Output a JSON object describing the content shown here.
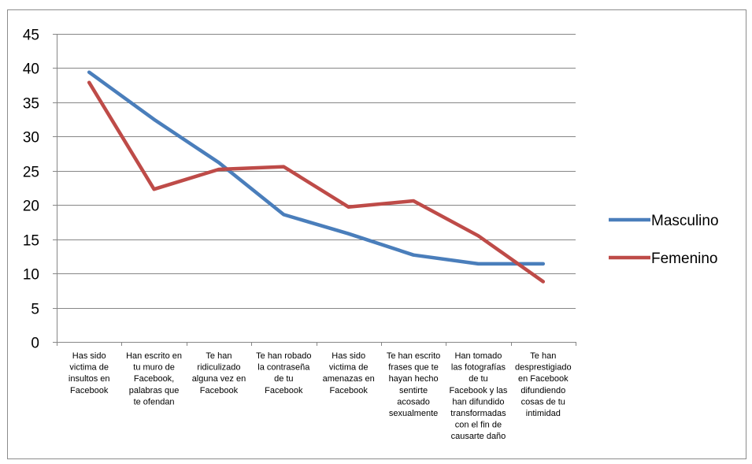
{
  "chart_data": {
    "type": "line",
    "title": "",
    "xlabel": "",
    "ylabel": "",
    "ylim": [
      0,
      45
    ],
    "yticks": [
      0,
      5,
      10,
      15,
      20,
      25,
      30,
      35,
      40,
      45
    ],
    "grid": true,
    "legend_position": "right",
    "categories": [
      [
        "Has sido",
        "victima de",
        "insultos en",
        "Facebook"
      ],
      [
        "Han escrito en",
        "tu muro de",
        "Facebook,",
        "palabras que",
        "te ofendan"
      ],
      [
        "Te han",
        "ridiculizado",
        "alguna vez en",
        "Facebook"
      ],
      [
        "Te han robado",
        "la contraseña",
        "de tu",
        "Facebook"
      ],
      [
        "Has sido",
        "victima de",
        "amenazas en",
        "Facebook"
      ],
      [
        "Te han escrito",
        "frases que te",
        "hayan hecho",
        "sentirte",
        "acosado",
        "sexualmente"
      ],
      [
        "Han tomado",
        "las fotografías",
        "de tu",
        "Facebook y las",
        "han difundido",
        "transformadas",
        "con el fin de",
        "causarte daño"
      ],
      [
        "Te han",
        "desprestigiado",
        "en Facebook",
        "difundiendo",
        "cosas de tu",
        "intimidad"
      ]
    ],
    "series": [
      {
        "name": "Masculino",
        "color": "#4a7ebb",
        "values": [
          39.4,
          32.5,
          26.2,
          18.6,
          15.8,
          12.7,
          11.4,
          11.4
        ]
      },
      {
        "name": "Femenino",
        "color": "#be4b48",
        "values": [
          37.9,
          22.3,
          25.2,
          25.6,
          19.7,
          20.6,
          15.5,
          8.8
        ]
      }
    ]
  }
}
